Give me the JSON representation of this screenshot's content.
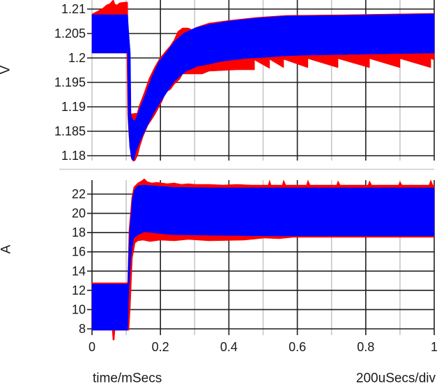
{
  "colors": {
    "trace_red": "#ff0000",
    "trace_blue": "#0000ff",
    "grid_major": "#1e1e1e",
    "grid_minor": "#c6c6c6",
    "separator": "#cccccc"
  },
  "chart_data": {
    "type": "line",
    "title": "",
    "layout": "two vertically stacked panels sharing the time axis",
    "grid": true,
    "legend": null,
    "x": {
      "label": "time/mSecs",
      "scale_note": "200uSecs/div",
      "range": [
        0,
        1
      ],
      "ticks": [
        0,
        0.2,
        0.4,
        0.6,
        0.8,
        1
      ],
      "tick_labels": [
        "0",
        "0.2",
        "0.4",
        "0.6",
        "0.8",
        "1"
      ],
      "minor_ticks": [
        0.1,
        0.3,
        0.5,
        0.7,
        0.9
      ]
    },
    "panels": [
      {
        "id": "voltage",
        "ylabel": "V",
        "ylim": [
          1.18,
          1.21
        ],
        "yticks": [
          1.18,
          1.185,
          1.19,
          1.195,
          1.2,
          1.205,
          1.21
        ],
        "ytick_labels": [
          "1.18",
          "1.185",
          "1.19",
          "1.195",
          "1.2",
          "1.205",
          "1.21"
        ],
        "summary": {
          "initial_band": [
            1.201,
            1.209
          ],
          "step_time": 0.104,
          "minimum": 1.179,
          "minimum_time": 0.12,
          "final_band": [
            1.201,
            1.209
          ],
          "red_ripple_low_final": 1.198
        },
        "series": [
          {
            "name": "red trace",
            "color": "#ff0000",
            "envelope": [
              [
                0,
                1.209
              ],
              [
                0.016,
                1.20957
              ],
              [
                0.031,
                1.21014
              ],
              [
                0.043,
                1.21086
              ],
              [
                0.053,
                1.21114
              ],
              [
                0.059,
                1.21171
              ],
              [
                0.063,
                1.21186
              ],
              [
                0.067,
                1.211
              ],
              [
                0.073,
                1.21086
              ],
              [
                0.081,
                1.21129
              ],
              [
                0.094,
                1.21143
              ],
              [
                0.104,
                1.21143
              ],
              [
                0.106,
                1.20329
              ],
              [
                0.11,
                1.1903
              ],
              [
                0.114,
                1.18857
              ],
              [
                0.132,
                1.18871
              ],
              [
                0.138,
                1.19029
              ],
              [
                0.153,
                1.193
              ],
              [
                0.167,
                1.19586
              ],
              [
                0.183,
                1.19814
              ],
              [
                0.196,
                1.19971
              ],
              [
                0.212,
                1.20114
              ],
              [
                0.228,
                1.20243
              ],
              [
                0.24,
                1.20371
              ],
              [
                0.251,
                1.20543
              ],
              [
                0.265,
                1.20614
              ],
              [
                0.281,
                1.20614
              ],
              [
                0.295,
                1.20571
              ],
              [
                0.305,
                1.20629
              ],
              [
                0.342,
                1.20714
              ],
              [
                0.403,
                1.20771
              ],
              [
                0.479,
                1.20829
              ],
              [
                0.566,
                1.20871
              ],
              [
                0.749,
                1.20886
              ],
              [
                0.872,
                1.209
              ],
              [
                1.0,
                1.20914
              ],
              [
                1.0,
                1.19957
              ],
              [
                0.99,
                1.19986
              ],
              [
                0.99,
                1.198
              ],
              [
                0.9,
                1.19986
              ],
              [
                0.9,
                1.198
              ],
              [
                0.811,
                1.19986
              ],
              [
                0.811,
                1.198
              ],
              [
                0.719,
                1.19986
              ],
              [
                0.719,
                1.198
              ],
              [
                0.631,
                1.19986
              ],
              [
                0.631,
                1.198
              ],
              [
                0.56,
                1.19971
              ],
              [
                0.56,
                1.198
              ],
              [
                0.519,
                1.19971
              ],
              [
                0.519,
                1.19786
              ],
              [
                0.475,
                1.19957
              ],
              [
                0.475,
                1.19757
              ],
              [
                0.424,
                1.19757
              ],
              [
                0.383,
                1.19743
              ],
              [
                0.342,
                1.19729
              ],
              [
                0.322,
                1.19671
              ],
              [
                0.281,
                1.19671
              ],
              [
                0.265,
                1.19671
              ],
              [
                0.257,
                1.19571
              ],
              [
                0.24,
                1.19457
              ],
              [
                0.23,
                1.19357
              ],
              [
                0.216,
                1.193
              ],
              [
                0.204,
                1.191
              ],
              [
                0.183,
                1.18829
              ],
              [
                0.163,
                1.18614
              ],
              [
                0.149,
                1.18386
              ],
              [
                0.14,
                1.18186
              ],
              [
                0.134,
                1.18014
              ],
              [
                0.126,
                1.179
              ],
              [
                0.12,
                1.17886
              ],
              [
                0.114,
                1.17957
              ],
              [
                0.108,
                1.184
              ],
              [
                0.104,
                1.18857
              ],
              [
                0.102,
                1.201
              ],
              [
                0,
                1.201
              ]
            ]
          },
          {
            "name": "blue trace",
            "color": "#0000ff",
            "envelope": [
              [
                0,
                1.20886
              ],
              [
                0.104,
                1.20886
              ],
              [
                0.108,
                1.20471
              ],
              [
                0.112,
                1.201
              ],
              [
                0.114,
                1.18829
              ],
              [
                0.12,
                1.18729
              ],
              [
                0.126,
                1.18714
              ],
              [
                0.138,
                1.18943
              ],
              [
                0.155,
                1.19229
              ],
              [
                0.175,
                1.19614
              ],
              [
                0.196,
                1.19929
              ],
              [
                0.216,
                1.201
              ],
              [
                0.24,
                1.20329
              ],
              [
                0.267,
                1.205
              ],
              [
                0.301,
                1.20614
              ],
              [
                0.342,
                1.20686
              ],
              [
                0.403,
                1.20757
              ],
              [
                0.479,
                1.20814
              ],
              [
                0.566,
                1.20857
              ],
              [
                0.749,
                1.20871
              ],
              [
                0.872,
                1.20886
              ],
              [
                1.0,
                1.209
              ],
              [
                1.0,
                1.201
              ],
              [
                0.872,
                1.20086
              ],
              [
                0.749,
                1.20071
              ],
              [
                0.627,
                1.20057
              ],
              [
                0.566,
                1.20043
              ],
              [
                0.511,
                1.20014
              ],
              [
                0.444,
                1.19986
              ],
              [
                0.377,
                1.19929
              ],
              [
                0.342,
                1.19871
              ],
              [
                0.308,
                1.19829
              ],
              [
                0.275,
                1.19729
              ],
              [
                0.257,
                1.19629
              ],
              [
                0.24,
                1.19514
              ],
              [
                0.23,
                1.19414
              ],
              [
                0.204,
                1.19143
              ],
              [
                0.179,
                1.18857
              ],
              [
                0.155,
                1.18514
              ],
              [
                0.138,
                1.18257
              ],
              [
                0.128,
                1.18071
              ],
              [
                0.122,
                1.179
              ],
              [
                0.116,
                1.17929
              ],
              [
                0.11,
                1.18186
              ],
              [
                0.106,
                1.18757
              ],
              [
                0.104,
                1.201
              ],
              [
                0,
                1.201
              ]
            ]
          }
        ]
      },
      {
        "id": "current",
        "ylabel": "A",
        "ylim": [
          8,
          22
        ],
        "yticks": [
          8,
          10,
          12,
          14,
          16,
          18,
          20,
          22
        ],
        "ytick_labels": [
          "8",
          "10",
          "12",
          "14",
          "16",
          "18",
          "20",
          "22"
        ],
        "summary": {
          "initial_band": [
            7.9,
            12.6
          ],
          "step_time": 0.104,
          "final_band": [
            17.7,
            22.7
          ],
          "red_peak": 23.6,
          "red_min_spike": 6.8
        },
        "series": [
          {
            "name": "red trace",
            "color": "#ff0000",
            "envelope": [
              [
                0,
                12.788
              ],
              [
                0.104,
                12.788
              ],
              [
                0.108,
                18.228
              ],
              [
                0.116,
                21.637
              ],
              [
                0.122,
                22.725
              ],
              [
                0.134,
                23.161
              ],
              [
                0.145,
                23.378
              ],
              [
                0.153,
                23.596
              ],
              [
                0.161,
                23.306
              ],
              [
                0.175,
                23.161
              ],
              [
                0.189,
                23.233
              ],
              [
                0.204,
                23.161
              ],
              [
                0.22,
                23.088
              ],
              [
                0.24,
                23.161
              ],
              [
                0.261,
                23.016
              ],
              [
                0.281,
                23.088
              ],
              [
                0.301,
                23.016
              ],
              [
                0.342,
                23.016
              ],
              [
                0.383,
                22.943
              ],
              [
                0.424,
                23.016
              ],
              [
                0.464,
                22.943
              ],
              [
                0.515,
                22.943
              ],
              [
                0.519,
                23.451
              ],
              [
                0.523,
                22.943
              ],
              [
                0.556,
                22.943
              ],
              [
                0.56,
                23.451
              ],
              [
                0.566,
                22.943
              ],
              [
                0.627,
                22.943
              ],
              [
                0.631,
                23.451
              ],
              [
                0.637,
                22.943
              ],
              [
                0.715,
                22.943
              ],
              [
                0.719,
                23.378
              ],
              [
                0.725,
                22.943
              ],
              [
                0.807,
                22.943
              ],
              [
                0.811,
                23.378
              ],
              [
                0.817,
                22.943
              ],
              [
                0.896,
                22.943
              ],
              [
                0.9,
                23.306
              ],
              [
                0.906,
                22.943
              ],
              [
                0.985,
                22.943
              ],
              [
                0.99,
                23.451
              ],
              [
                0.996,
                22.943
              ],
              [
                1.0,
                22.87
              ],
              [
                1.0,
                17.503
              ],
              [
                0.749,
                17.503
              ],
              [
                0.587,
                17.503
              ],
              [
                0.546,
                17.358
              ],
              [
                0.505,
                17.43
              ],
              [
                0.444,
                17.213
              ],
              [
                0.342,
                17.14
              ],
              [
                0.281,
                17.285
              ],
              [
                0.24,
                17.14
              ],
              [
                0.2,
                17.213
              ],
              [
                0.169,
                17.067
              ],
              [
                0.149,
                17.213
              ],
              [
                0.134,
                17.14
              ],
              [
                0.126,
                16.922
              ],
              [
                0.118,
                15.327
              ],
              [
                0.112,
                10.249
              ],
              [
                0.108,
                7.855
              ],
              [
                0.067,
                7.855
              ],
              [
                0.065,
                6.84
              ],
              [
                0.061,
                6.84
              ],
              [
                0.059,
                7.855
              ],
              [
                0,
                7.855
              ]
            ]
          },
          {
            "name": "blue trace",
            "color": "#0000ff",
            "envelope": [
              [
                0,
                12.643
              ],
              [
                0.104,
                12.643
              ],
              [
                0.11,
                18.228
              ],
              [
                0.118,
                21.492
              ],
              [
                0.124,
                22.435
              ],
              [
                0.134,
                22.87
              ],
              [
                0.153,
                22.943
              ],
              [
                0.179,
                22.87
              ],
              [
                0.234,
                22.725
              ],
              [
                0.342,
                22.653
              ],
              [
                0.546,
                22.653
              ],
              [
                0.749,
                22.653
              ],
              [
                1.0,
                22.653
              ],
              [
                1.0,
                17.648
              ],
              [
                0.749,
                17.648
              ],
              [
                0.546,
                17.648
              ],
              [
                0.342,
                17.72
              ],
              [
                0.226,
                17.793
              ],
              [
                0.153,
                18.083
              ],
              [
                0.132,
                17.72
              ],
              [
                0.122,
                17.43
              ],
              [
                0.114,
                15.544
              ],
              [
                0.108,
                12.208
              ],
              [
                0.104,
                7.855
              ],
              [
                0,
                7.855
              ]
            ]
          }
        ]
      }
    ]
  }
}
